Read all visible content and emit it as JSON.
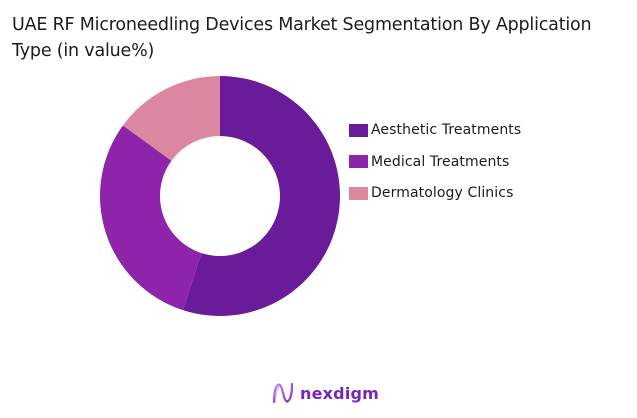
{
  "header": {
    "title": "UAE RF Microneedling Devices Market Segmentation By Application Type (in value%)"
  },
  "legend": {
    "items": [
      {
        "label": "Aesthetic Treatments",
        "color": "#6A1B9A"
      },
      {
        "label": "Medical Treatments",
        "color": "#8E24AA"
      },
      {
        "label": "Dermatology Clinics",
        "color": "#DB87A0"
      }
    ]
  },
  "brand": {
    "name": "nexdigm",
    "logo_icon": "nexdigm-wave-logo-icon",
    "color": "#7B22B8"
  },
  "chart_data": {
    "type": "pie",
    "subtype": "donut",
    "title": "UAE RF Microneedling Devices Market Segmentation By Application Type (in value%)",
    "categories": [
      "Aesthetic Treatments",
      "Medical Treatments",
      "Dermatology Clinics"
    ],
    "values": [
      55,
      30,
      15
    ],
    "unit": "%",
    "colors": [
      "#6A1B9A",
      "#8E24AA",
      "#DB87A0"
    ],
    "start_angle": "12 o'clock, clockwise",
    "legend_position": "right",
    "data_labels": false
  }
}
